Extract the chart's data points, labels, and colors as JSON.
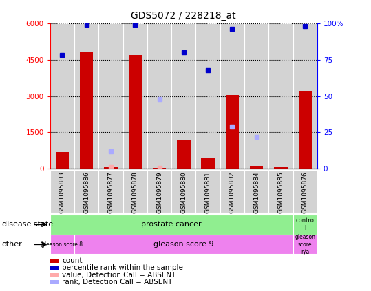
{
  "title": "GDS5072 / 228218_at",
  "samples": [
    "GSM1095883",
    "GSM1095886",
    "GSM1095877",
    "GSM1095878",
    "GSM1095879",
    "GSM1095880",
    "GSM1095881",
    "GSM1095882",
    "GSM1095884",
    "GSM1095885",
    "GSM1095876"
  ],
  "bar_values": [
    700,
    4800,
    80,
    4700,
    30,
    1200,
    450,
    3050,
    110,
    80,
    3200
  ],
  "dot_values": [
    78,
    99,
    null,
    99,
    null,
    80,
    68,
    96,
    null,
    null,
    98
  ],
  "dot_absent_value": [
    null,
    null,
    80,
    null,
    30,
    null,
    null,
    null,
    null,
    null,
    null
  ],
  "dot_absent_rank": [
    null,
    null,
    12,
    null,
    48,
    null,
    null,
    29,
    22,
    null,
    null
  ],
  "ylim_left": [
    0,
    6000
  ],
  "ylim_right": [
    0,
    100
  ],
  "yticks_left": [
    0,
    1500,
    3000,
    4500,
    6000
  ],
  "yticks_right": [
    0,
    25,
    50,
    75,
    100
  ],
  "bar_color": "#cc0000",
  "dot_color": "#0000cc",
  "absent_bar_color": "#ffaaaa",
  "absent_dot_color": "#aaaaff",
  "plot_bg": "#ffffff",
  "col_bg": "#d3d3d3",
  "disease_state_color": "#90ee90",
  "other_color": "#ee82ee",
  "legend_items": [
    {
      "label": "count",
      "color": "#cc0000"
    },
    {
      "label": "percentile rank within the sample",
      "color": "#0000cc"
    },
    {
      "label": "value, Detection Call = ABSENT",
      "color": "#ffaaaa"
    },
    {
      "label": "rank, Detection Call = ABSENT",
      "color": "#aaaaff"
    }
  ]
}
